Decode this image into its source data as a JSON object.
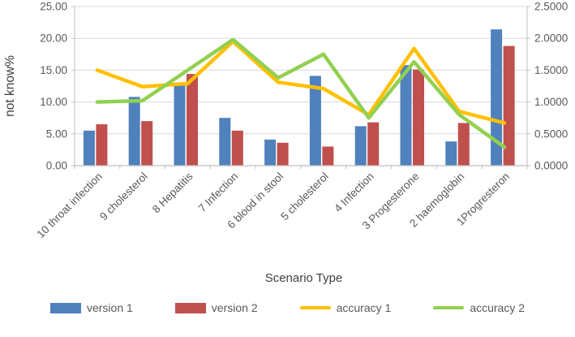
{
  "chart_data": {
    "type": "bar",
    "subtype": "combo-bar-line-dual-axis",
    "title": "",
    "xlabel": "Scenario Type",
    "ylabel_left": "not know%",
    "ylabel_right": "",
    "grid": "horizontal",
    "legend_position": "bottom",
    "categories": [
      "10 throat infection",
      "9 cholesterol",
      "8 Hepatitis",
      "7 Infection",
      "6 blood in stool",
      "5 cholesterol",
      "4 Infection",
      "3 Progesterone",
      "2 haemoglobin",
      "1Progresteron"
    ],
    "left_axis": {
      "ticks": [
        "0.00",
        "5.00",
        "10.00",
        "15.00",
        "20.00",
        "25.00"
      ],
      "min": 0,
      "max": 25
    },
    "right_axis": {
      "ticks": [
        "0.0000",
        "0.5000",
        "1.0000",
        "1.5000",
        "2.0000",
        "2.5000"
      ],
      "min": 0,
      "max": 2.5
    },
    "series": [
      {
        "name": "version 1",
        "type": "bar",
        "axis": "left",
        "color": "#4F81BD",
        "values": [
          5.5,
          10.8,
          13.0,
          7.5,
          4.1,
          14.1,
          6.2,
          15.8,
          3.8,
          21.4
        ]
      },
      {
        "name": "version 2",
        "type": "bar",
        "axis": "left",
        "color": "#C0504D",
        "values": [
          6.5,
          7.0,
          14.4,
          5.5,
          3.6,
          3.0,
          6.8,
          15.1,
          6.7,
          18.8
        ]
      },
      {
        "name": "accuracy 1",
        "type": "line",
        "axis": "right",
        "color": "#FFC000",
        "values": [
          1.5,
          1.24,
          1.29,
          1.95,
          1.31,
          1.21,
          0.8,
          1.84,
          0.85,
          0.67
        ]
      },
      {
        "name": "accuracy 2",
        "type": "line",
        "axis": "right",
        "color": "#92D050",
        "values": [
          1.0,
          1.02,
          1.5,
          1.98,
          1.38,
          1.75,
          0.75,
          1.63,
          0.8,
          0.29
        ]
      }
    ]
  },
  "x_axis_title": "Scenario Type",
  "y_axis_title": "not know%",
  "colors": {
    "gridline": "#D9D9D9",
    "axis_line": "#BFBFBF",
    "tick_text": "#595959",
    "axis_title_text": "#404040"
  }
}
